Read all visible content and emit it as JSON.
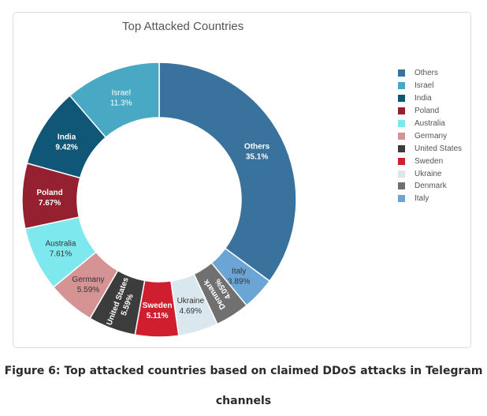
{
  "chart_data": {
    "type": "pie",
    "title": "Top Attacked Countries",
    "donut": true,
    "legend_position": "right",
    "slices": [
      {
        "label": "Others",
        "value": 35.1,
        "display": "35.1%",
        "color": "#3a729e",
        "text_color": "#ffffff",
        "bold": true
      },
      {
        "label": "Italy",
        "value": 3.89,
        "display": "3.89%",
        "color": "#6aa5d6",
        "text_color": "#333333",
        "bold": false
      },
      {
        "label": "Denmark",
        "value": 4.05,
        "display": "4.05%",
        "color": "#707070",
        "text_color": "#ffffff",
        "bold": true,
        "rotated": true
      },
      {
        "label": "Ukraine",
        "value": 4.69,
        "display": "4.69%",
        "color": "#dbe7ef",
        "text_color": "#333333",
        "bold": false
      },
      {
        "label": "Sweden",
        "value": 5.11,
        "display": "5.11%",
        "color": "#cf1f2e",
        "text_color": "#ffffff",
        "bold": true
      },
      {
        "label": "United States",
        "value": 5.59,
        "display": "5.59%",
        "color": "#3c3c3c",
        "text_color": "#ffffff",
        "bold": true,
        "rotated": true
      },
      {
        "label": "Germany",
        "value": 5.59,
        "display": "5.59%",
        "color": "#d69393",
        "text_color": "#333333",
        "bold": false
      },
      {
        "label": "Australia",
        "value": 7.61,
        "display": "7.61%",
        "color": "#7ee8ef",
        "text_color": "#333333",
        "bold": false
      },
      {
        "label": "Poland",
        "value": 7.67,
        "display": "7.67%",
        "color": "#95202f",
        "text_color": "#ffffff",
        "bold": true
      },
      {
        "label": "India",
        "value": 9.42,
        "display": "9.42%",
        "color": "#0f5677",
        "text_color": "#ffffff",
        "bold": true
      },
      {
        "label": "Israel",
        "value": 11.3,
        "display": "11.3%",
        "color": "#49a9c5",
        "text_color": "#ffffff",
        "bold": false
      }
    ],
    "legend": [
      {
        "label": "Others",
        "color": "#3a729e"
      },
      {
        "label": "Israel",
        "color": "#49a9c5"
      },
      {
        "label": "India",
        "color": "#0f5677"
      },
      {
        "label": "Poland",
        "color": "#95202f"
      },
      {
        "label": "Australia",
        "color": "#7ee8ef"
      },
      {
        "label": "Germany",
        "color": "#d69393"
      },
      {
        "label": "United States",
        "color": "#3c3c3c"
      },
      {
        "label": "Sweden",
        "color": "#cf1f2e"
      },
      {
        "label": "Ukraine",
        "color": "#dbe7ef"
      },
      {
        "label": "Denmark",
        "color": "#707070"
      },
      {
        "label": "Italy",
        "color": "#6aa5d6"
      }
    ]
  },
  "caption": {
    "line1": "Figure 6: Top attacked countries based on claimed DDoS attacks in Telegram",
    "line2": "channels"
  }
}
